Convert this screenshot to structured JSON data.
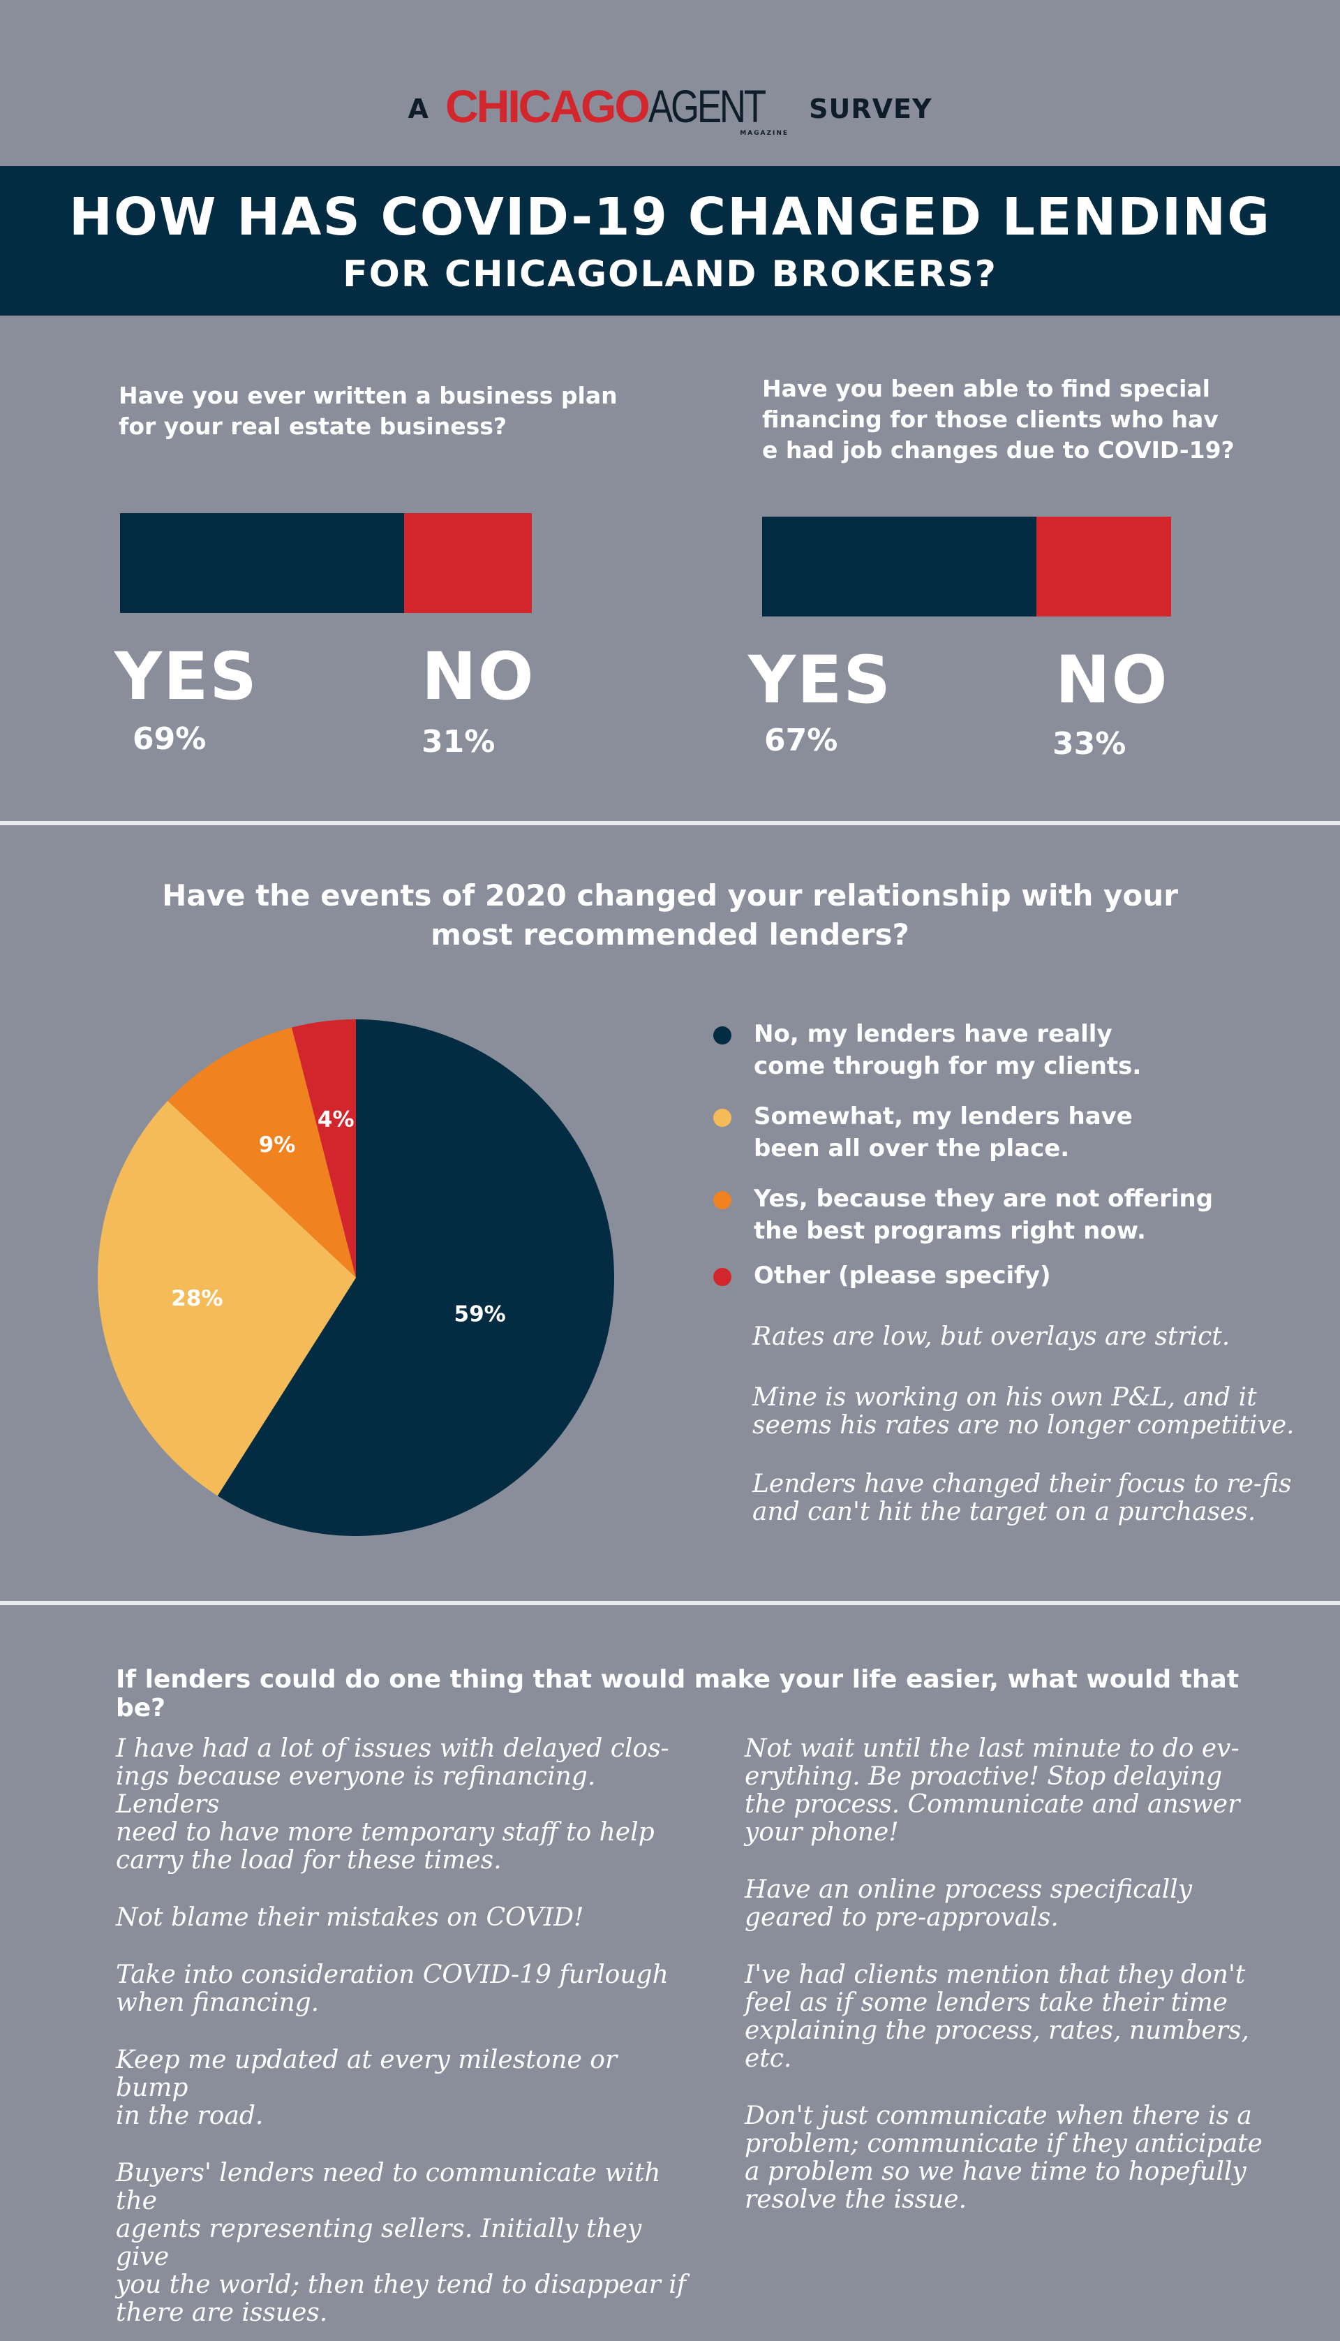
{
  "brand": {
    "prefix": "A",
    "logo_part1": "CHICAGO",
    "logo_part2": "AGENT",
    "logo_sub": "MAGAZINE",
    "suffix": "SURVEY"
  },
  "header": {
    "line1": "HOW HAS COVID-19 CHANGED LENDING",
    "line2": "FOR CHICAGOLAND BROKERS?"
  },
  "colors": {
    "navy": "#032c42",
    "red": "#d3252c",
    "yellow": "#f6bb59",
    "orange": "#f0821f",
    "background": "#8a8e9b"
  },
  "chart_data": [
    {
      "type": "bar",
      "title": "Have you ever written a business plan for your real estate business?",
      "categories": [
        "YES",
        "NO"
      ],
      "values": [
        69,
        31
      ],
      "labels": [
        "69%",
        "31%"
      ]
    },
    {
      "type": "bar",
      "title": "Have you been able to find special financing for those clients who hav e had job changes due to COVID-19?",
      "categories": [
        "YES",
        "NO"
      ],
      "values": [
        67,
        33
      ],
      "labels": [
        "67%",
        "33%"
      ]
    },
    {
      "type": "pie",
      "title": "Have the events of 2020 changed your relationship with your most recommended lenders?",
      "categories": [
        "No, my lenders have really come through for my clients.",
        "Somewhat, my lenders have been all over the place.",
        "Yes, because they are not offering the best programs right now.",
        "Other (please specify)"
      ],
      "values": [
        59,
        28,
        9,
        4
      ],
      "labels": [
        "59%",
        "28%",
        "9%",
        "4%"
      ],
      "legend": "right"
    }
  ],
  "q1": {
    "line1": "Have you ever written a business plan",
    "line2": "for your real estate business?"
  },
  "q2": {
    "line1": "Have you been able to find special",
    "line2": "financing for those clients who hav",
    "line3": "e had job changes due to COVID-19?"
  },
  "q3": {
    "line1": "Have the events of 2020 changed your relationship with your",
    "line2": "most recommended lenders?"
  },
  "legend": [
    {
      "line1": "No, my lenders have really",
      "line2": "come through for my clients."
    },
    {
      "line1": "Somewhat, my lenders have",
      "line2": "been all over the place."
    },
    {
      "line1": "Yes, because they are not offering",
      "line2": "the best programs right now."
    },
    {
      "line1": "Other (please specify)",
      "line2": ""
    }
  ],
  "other_responses": [
    {
      "line1": "Rates are low, but overlays are strict.",
      "line2": ""
    },
    {
      "line1": "Mine is working on his own P&L, and it",
      "line2": "seems his rates are no longer competitive."
    },
    {
      "line1": "Lenders have changed their focus to re-fis",
      "line2": "and can't hit the target on a purchases."
    }
  ],
  "q4": "If lenders could do one thing that would make your life easier, what would that be?",
  "answers_left": [
    [
      "I have had a lot of issues with delayed clos-",
      "ings because everyone is refinancing. Lenders",
      "need to have more temporary staff to help",
      "carry the load for these times."
    ],
    [
      "Not blame their mistakes on COVID!"
    ],
    [
      "Take into consideration COVID-19 furlough",
      "when financing."
    ],
    [
      "Keep me updated at every milestone or bump",
      "in the road."
    ],
    [
      "Buyers' lenders need to communicate with the",
      "agents representing sellers. Initially they give",
      "you the world; then they tend to disappear if",
      "there are issues."
    ]
  ],
  "answers_right": [
    [
      "Not wait until the last minute to do ev-",
      "erything. Be proactive!  Stop delaying",
      "the process. Communicate and answer",
      "your phone!"
    ],
    [
      "Have an online process specifically",
      "geared to pre-approvals."
    ],
    [
      "I've had clients mention that they don't",
      "feel as if some lenders take their time",
      "explaining the process, rates, numbers,",
      "etc."
    ],
    [
      "Don't just communicate when there is a",
      "problem; communicate if they anticipate",
      "a problem so we have time to hopefully",
      "resolve the issue."
    ]
  ]
}
